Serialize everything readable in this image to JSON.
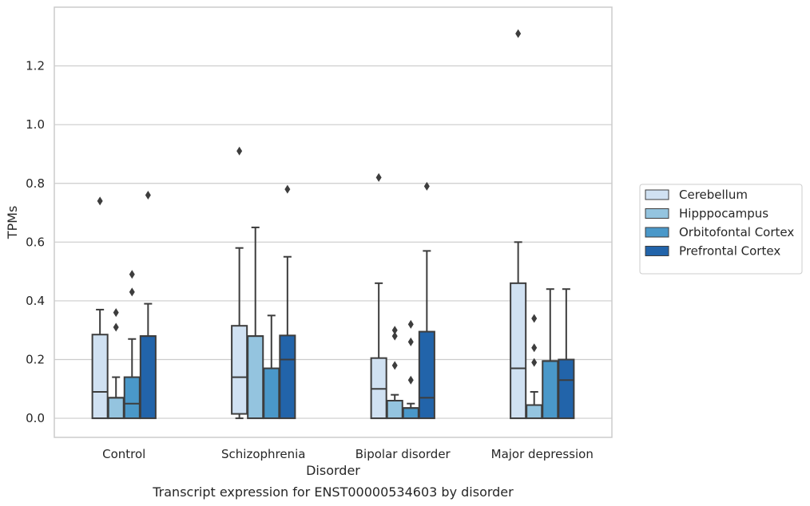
{
  "caption": "Transcript expression for ENST00000534603 by disorder",
  "chart_data": {
    "type": "box",
    "title": "",
    "xlabel": "Disorder",
    "ylabel": "TPMs",
    "ylim": [
      -0.065,
      1.4
    ],
    "yticks": [
      "0.0",
      "0.2",
      "0.4",
      "0.6",
      "0.8",
      "1.0",
      "1.2"
    ],
    "grid": "horizontal",
    "legend_position": "right",
    "categories": [
      "Control",
      "Schizophrenia",
      "Bipolar disorder",
      "Major depression"
    ],
    "series": [
      {
        "name": "Cerebellum",
        "color": "#d0e1f2",
        "boxes": [
          {
            "whisker_low": 0.0,
            "q1": 0.0,
            "median": 0.09,
            "q3": 0.285,
            "whisker_high": 0.37,
            "outliers": [
              0.74
            ]
          },
          {
            "whisker_low": 0.0,
            "q1": 0.015,
            "median": 0.14,
            "q3": 0.315,
            "whisker_high": 0.58,
            "outliers": [
              0.91
            ]
          },
          {
            "whisker_low": 0.0,
            "q1": 0.0,
            "median": 0.1,
            "q3": 0.205,
            "whisker_high": 0.46,
            "outliers": [
              0.82
            ]
          },
          {
            "whisker_low": 0.0,
            "q1": 0.0,
            "median": 0.17,
            "q3": 0.46,
            "whisker_high": 0.6,
            "outliers": [
              1.31
            ]
          }
        ]
      },
      {
        "name": "Hipppocampus",
        "color": "#94c4df",
        "boxes": [
          {
            "whisker_low": 0.0,
            "q1": 0.0,
            "median": 0.07,
            "q3": 0.07,
            "whisker_high": 0.14,
            "outliers": [
              0.31,
              0.36
            ]
          },
          {
            "whisker_low": 0.0,
            "q1": 0.0,
            "median": 0.28,
            "q3": 0.28,
            "whisker_high": 0.65,
            "outliers": []
          },
          {
            "whisker_low": 0.0,
            "q1": 0.0,
            "median": 0.06,
            "q3": 0.06,
            "whisker_high": 0.08,
            "outliers": [
              0.18,
              0.28,
              0.3
            ]
          },
          {
            "whisker_low": 0.0,
            "q1": 0.0,
            "median": 0.045,
            "q3": 0.045,
            "whisker_high": 0.09,
            "outliers": [
              0.19,
              0.24,
              0.34
            ]
          }
        ]
      },
      {
        "name": "Orbitofontal Cortex",
        "color": "#4a98c9",
        "boxes": [
          {
            "whisker_low": 0.0,
            "q1": 0.0,
            "median": 0.05,
            "q3": 0.14,
            "whisker_high": 0.27,
            "outliers": [
              0.43,
              0.49
            ]
          },
          {
            "whisker_low": 0.0,
            "q1": 0.0,
            "median": 0.17,
            "q3": 0.17,
            "whisker_high": 0.35,
            "outliers": []
          },
          {
            "whisker_low": 0.0,
            "q1": 0.0,
            "median": 0.035,
            "q3": 0.035,
            "whisker_high": 0.05,
            "outliers": [
              0.13,
              0.26,
              0.32
            ]
          },
          {
            "whisker_low": 0.0,
            "q1": 0.0,
            "median": 0.195,
            "q3": 0.195,
            "whisker_high": 0.44,
            "outliers": []
          }
        ]
      },
      {
        "name": "Prefrontal Cortex",
        "color": "#2264aa",
        "boxes": [
          {
            "whisker_low": 0.0,
            "q1": 0.0,
            "median": 0.28,
            "q3": 0.28,
            "whisker_high": 0.39,
            "outliers": [
              0.76
            ]
          },
          {
            "whisker_low": 0.0,
            "q1": 0.0,
            "median": 0.2,
            "q3": 0.282,
            "whisker_high": 0.55,
            "outliers": [
              0.78
            ]
          },
          {
            "whisker_low": 0.0,
            "q1": 0.0,
            "median": 0.07,
            "q3": 0.295,
            "whisker_high": 0.57,
            "outliers": [
              0.79
            ]
          },
          {
            "whisker_low": 0.0,
            "q1": 0.0,
            "median": 0.13,
            "q3": 0.2,
            "whisker_high": 0.44,
            "outliers": []
          }
        ]
      }
    ]
  }
}
